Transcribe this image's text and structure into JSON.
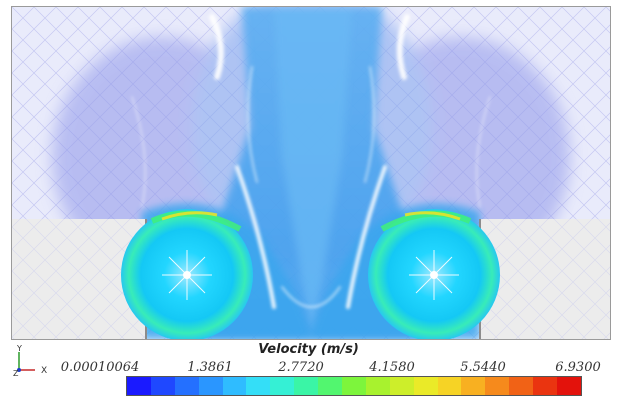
{
  "legend": {
    "title": "Velocity (m/s)",
    "ticks": [
      "0.00010064",
      "1.3861",
      "2.7720",
      "4.1580",
      "5.5440",
      "6.9300"
    ],
    "colors": [
      "#1a1aff",
      "#1f48ff",
      "#2470ff",
      "#2a96ff",
      "#2fbcff",
      "#34def7",
      "#35f0d5",
      "#3af5a6",
      "#52f66f",
      "#7df53c",
      "#a8f22e",
      "#cdee2a",
      "#eaea28",
      "#f6d325",
      "#f8b021",
      "#f68a1c",
      "#f16216",
      "#ea3410",
      "#e3120c"
    ]
  },
  "axes": {
    "y": "Y",
    "z": "Z",
    "x": "X"
  },
  "field": {
    "background": "#e9ebfb",
    "flow_color": "#5aa8ee",
    "streak_color": "#ffffff",
    "vortex_inner": "#00e5ff",
    "vortex_ring": "#2cf0a0",
    "obstacle_color": "#ececec"
  }
}
